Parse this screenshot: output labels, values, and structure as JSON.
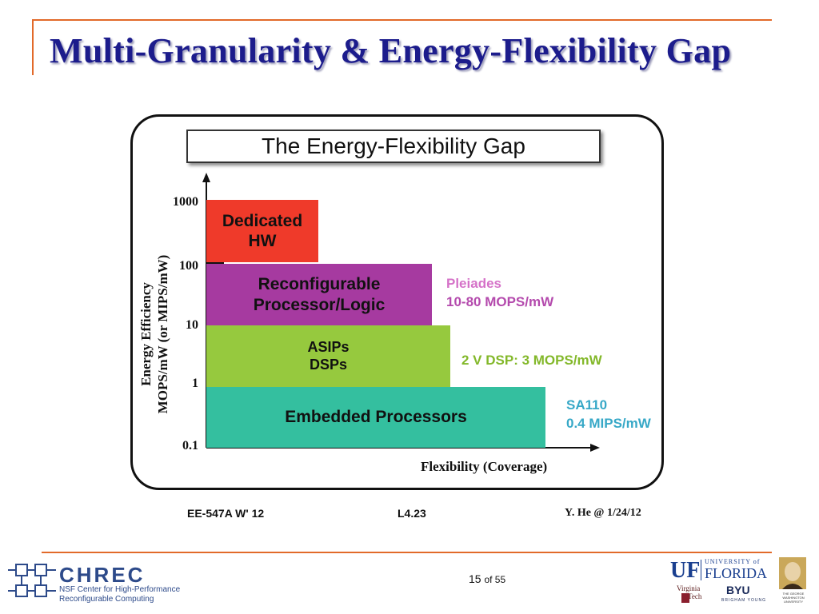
{
  "slide": {
    "title": "Multi-Granularity & Energy-Flexibility Gap",
    "page_number": "15",
    "page_of": "of 55"
  },
  "diagram": {
    "title": "The Energy-Flexibility Gap",
    "y_axis_label_line1": "Energy Efficiency",
    "y_axis_label_line2": "MOPS/mW (or MIPS/mW)",
    "x_axis_label": "Flexibility (Coverage)",
    "y_ticks": [
      "1000",
      "100",
      "10",
      "1",
      "0.1"
    ],
    "blocks": [
      {
        "label_line1": "Dedicated",
        "label_line2": "HW",
        "color": "#ef3a2a"
      },
      {
        "label_line1": "Reconfigurable",
        "label_line2": "Processor/Logic",
        "color": "#a63aa0"
      },
      {
        "label_line1": "ASIPs",
        "label_line2": "DSPs",
        "color": "#96c93e"
      },
      {
        "label_line1": "Embedded Processors",
        "label_line2": "",
        "color": "#34bf9f"
      }
    ],
    "annotations": [
      {
        "line1": "Pleiades",
        "line2": "10-80 MOPS/mW",
        "color1": "#d572c8",
        "color2": "#b44aad"
      },
      {
        "line1": "2 V DSP: 3 MOPS/mW",
        "line2": "",
        "color1": "#83b82a",
        "color2": "#83b82a"
      },
      {
        "line1": "SA110",
        "line2": "0.4 MIPS/mW",
        "color1": "#37a8c7",
        "color2": "#37a8c7"
      }
    ],
    "footer_left": "EE-547A W' 12",
    "footer_center": "L4.23",
    "footer_right": "Y. He @ 1/24/12"
  },
  "logos": {
    "chrec_name": "CHREC",
    "chrec_sub1": "NSF Center for High-Performance",
    "chrec_sub2": "Reconfigurable Computing",
    "uf_mark": "UF",
    "uf_university": "UNIVERSITY of",
    "uf_florida": "FLORIDA",
    "vt_line1": "Virginia",
    "vt_line2": "Tech",
    "byu": "BYU",
    "byu_sub": "BRIGHAM YOUNG",
    "gw_line1": "THE GEORGE",
    "gw_line2": "WASHINGTON",
    "gw_line3": "UNIVERSITY"
  }
}
